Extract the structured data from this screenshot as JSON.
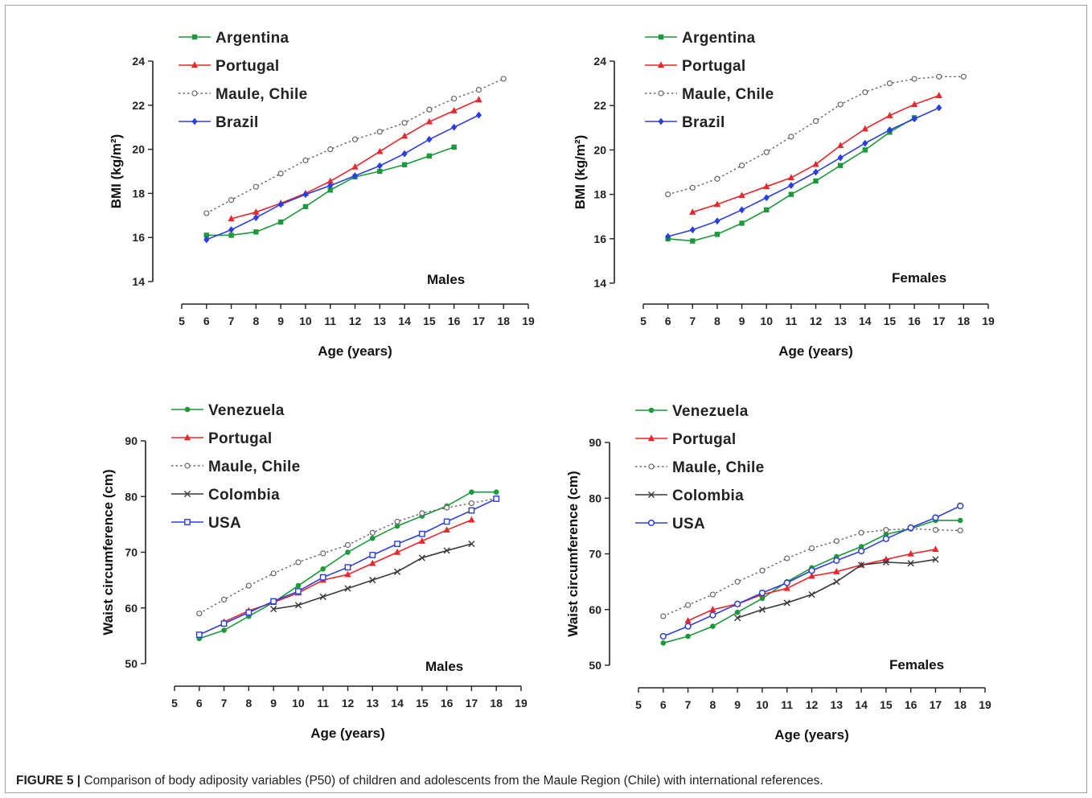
{
  "caption": {
    "label": "FIGURE 5 |",
    "text": " Comparison of body adiposity variables (P50) of children and adolescents from the Maule Region (Chile) with international references."
  },
  "colors": {
    "Argentina": "#1a9a3a",
    "Venezuela": "#1a9a3a",
    "Portugal": "#e8282c",
    "Maule, Chile": "#666666",
    "Brazil": "#2b3ee0",
    "USA": "#2b3ee0",
    "Colombia": "#3a3a3a"
  },
  "chart_data": [
    {
      "type": "line",
      "panel_label": "Males",
      "xlabel": "Age (years)",
      "ylabel": "BMI (kg/m²)",
      "xlim": [
        5,
        19
      ],
      "ylim": [
        14,
        24
      ],
      "xticks": [
        5,
        6,
        7,
        8,
        9,
        10,
        11,
        12,
        13,
        14,
        15,
        16,
        17,
        18,
        19
      ],
      "yticks": [
        14,
        16,
        18,
        20,
        22,
        24
      ],
      "legend": [
        "Argentina",
        "Portugal",
        "Maule, Chile",
        "Brazil"
      ],
      "series": [
        {
          "name": "Argentina",
          "marker": "square",
          "dashed": false,
          "x": [
            6,
            7,
            8,
            9,
            10,
            11,
            12,
            13,
            14,
            15,
            16
          ],
          "y": [
            16.1,
            16.1,
            16.25,
            16.7,
            17.4,
            18.15,
            18.75,
            19.0,
            19.3,
            19.7,
            20.1
          ]
        },
        {
          "name": "Portugal",
          "marker": "triangle",
          "dashed": false,
          "x": [
            7,
            8,
            9,
            10,
            11,
            12,
            13,
            14,
            15,
            16,
            17
          ],
          "y": [
            16.85,
            17.15,
            17.55,
            18.0,
            18.55,
            19.2,
            19.9,
            20.6,
            21.25,
            21.75,
            22.25
          ]
        },
        {
          "name": "Maule, Chile",
          "marker": "circle-open",
          "dashed": true,
          "x": [
            6,
            7,
            8,
            9,
            10,
            11,
            12,
            13,
            14,
            15,
            16,
            17,
            18
          ],
          "y": [
            17.1,
            17.7,
            18.3,
            18.9,
            19.5,
            20.0,
            20.45,
            20.8,
            21.2,
            21.8,
            22.3,
            22.7,
            23.2
          ]
        },
        {
          "name": "Brazil",
          "marker": "diamond",
          "dashed": false,
          "x": [
            6,
            7,
            8,
            9,
            10,
            11,
            12,
            13,
            14,
            15,
            16,
            17
          ],
          "y": [
            15.9,
            16.35,
            16.9,
            17.5,
            17.95,
            18.35,
            18.8,
            19.25,
            19.8,
            20.45,
            21.0,
            21.55
          ]
        }
      ]
    },
    {
      "type": "line",
      "panel_label": "Females",
      "xlabel": "Age (years)",
      "ylabel": "BMI (kg/m²)",
      "xlim": [
        5,
        19
      ],
      "ylim": [
        14,
        24
      ],
      "xticks": [
        5,
        6,
        7,
        8,
        9,
        10,
        11,
        12,
        13,
        14,
        15,
        16,
        17,
        18,
        19
      ],
      "yticks": [
        14,
        16,
        18,
        20,
        22,
        24
      ],
      "legend": [
        "Argentina",
        "Portugal",
        "Maule, Chile",
        "Brazil"
      ],
      "series": [
        {
          "name": "Argentina",
          "marker": "square",
          "dashed": false,
          "x": [
            6,
            7,
            8,
            9,
            10,
            11,
            12,
            13,
            14,
            15,
            16
          ],
          "y": [
            16.0,
            15.9,
            16.2,
            16.7,
            17.3,
            18.0,
            18.6,
            19.3,
            20.0,
            20.8,
            21.45
          ]
        },
        {
          "name": "Portugal",
          "marker": "triangle",
          "dashed": false,
          "x": [
            7,
            8,
            9,
            10,
            11,
            12,
            13,
            14,
            15,
            16,
            17
          ],
          "y": [
            17.2,
            17.55,
            17.95,
            18.35,
            18.75,
            19.35,
            20.2,
            20.95,
            21.55,
            22.05,
            22.45
          ]
        },
        {
          "name": "Maule, Chile",
          "marker": "circle-open",
          "dashed": true,
          "x": [
            6,
            7,
            8,
            9,
            10,
            11,
            12,
            13,
            14,
            15,
            16,
            17,
            18
          ],
          "y": [
            18.0,
            18.3,
            18.7,
            19.3,
            19.9,
            20.6,
            21.3,
            22.05,
            22.6,
            23.0,
            23.2,
            23.3,
            23.3
          ]
        },
        {
          "name": "Brazil",
          "marker": "diamond",
          "dashed": false,
          "x": [
            6,
            7,
            8,
            9,
            10,
            11,
            12,
            13,
            14,
            15,
            16,
            17
          ],
          "y": [
            16.1,
            16.4,
            16.8,
            17.3,
            17.85,
            18.4,
            19.0,
            19.65,
            20.3,
            20.9,
            21.4,
            21.9
          ]
        }
      ]
    },
    {
      "type": "line",
      "panel_label": "Males",
      "xlabel": "Age (years)",
      "ylabel": "Waist circumference (cm)",
      "xlim": [
        5,
        19
      ],
      "ylim": [
        50,
        90
      ],
      "xticks": [
        5,
        6,
        7,
        8,
        9,
        10,
        11,
        12,
        13,
        14,
        15,
        16,
        17,
        18,
        19
      ],
      "yticks": [
        50,
        60,
        70,
        80,
        90
      ],
      "legend": [
        "Venezuela",
        "Portugal",
        "Maule, Chile",
        "Colombia",
        "USA"
      ],
      "series": [
        {
          "name": "Venezuela",
          "marker": "circle-filled",
          "dashed": false,
          "x": [
            6,
            7,
            8,
            9,
            10,
            11,
            12,
            13,
            14,
            15,
            16,
            17,
            18
          ],
          "y": [
            54.5,
            56.0,
            58.5,
            61.0,
            64.0,
            67.0,
            70.0,
            72.5,
            74.7,
            76.5,
            78.3,
            80.8,
            80.8
          ]
        },
        {
          "name": "Portugal",
          "marker": "triangle",
          "dashed": false,
          "x": [
            7,
            8,
            9,
            10,
            11,
            12,
            13,
            14,
            15,
            16,
            17
          ],
          "y": [
            57.5,
            59.5,
            61.0,
            62.7,
            65.0,
            66.0,
            68.0,
            70.0,
            72.0,
            74.0,
            75.8
          ]
        },
        {
          "name": "Maule, Chile",
          "marker": "circle-open",
          "dashed": true,
          "x": [
            6,
            7,
            8,
            9,
            10,
            11,
            12,
            13,
            14,
            15,
            16,
            17,
            18
          ],
          "y": [
            59.0,
            61.5,
            64.0,
            66.2,
            68.2,
            69.8,
            71.3,
            73.5,
            75.5,
            77.0,
            78.0,
            78.8,
            79.7
          ]
        },
        {
          "name": "Colombia",
          "marker": "x",
          "dashed": false,
          "x": [
            9,
            10,
            11,
            12,
            13,
            14,
            15,
            16,
            17
          ],
          "y": [
            59.8,
            60.5,
            62.0,
            63.5,
            65.0,
            66.5,
            69.0,
            70.3,
            71.5
          ]
        },
        {
          "name": "USA",
          "marker": "square-open",
          "dashed": false,
          "x": [
            6,
            7,
            8,
            9,
            10,
            11,
            12,
            13,
            14,
            15,
            16,
            17,
            18
          ],
          "y": [
            55.2,
            57.2,
            59.2,
            61.2,
            63.0,
            65.5,
            67.3,
            69.5,
            71.5,
            73.3,
            75.5,
            77.5,
            79.6
          ]
        }
      ]
    },
    {
      "type": "line",
      "panel_label": "Females",
      "xlabel": "Age (years)",
      "ylabel": "Waist circumference (cm)",
      "xlim": [
        5,
        19
      ],
      "ylim": [
        50,
        90
      ],
      "xticks": [
        5,
        6,
        7,
        8,
        9,
        10,
        11,
        12,
        13,
        14,
        15,
        16,
        17,
        18,
        19
      ],
      "yticks": [
        50,
        60,
        70,
        80,
        90
      ],
      "legend": [
        "Venezuela",
        "Portugal",
        "Maule, Chile",
        "Colombia",
        "USA"
      ],
      "series": [
        {
          "name": "Venezuela",
          "marker": "circle-filled",
          "dashed": false,
          "x": [
            6,
            7,
            8,
            9,
            10,
            11,
            12,
            13,
            14,
            15,
            16,
            17,
            18
          ],
          "y": [
            54.0,
            55.2,
            57.0,
            59.5,
            62.0,
            65.0,
            67.5,
            69.5,
            71.3,
            73.5,
            74.5,
            76.0,
            76.0
          ]
        },
        {
          "name": "Portugal",
          "marker": "triangle",
          "dashed": false,
          "x": [
            7,
            8,
            9,
            10,
            11,
            12,
            13,
            14,
            15,
            16,
            17
          ],
          "y": [
            58.0,
            60.0,
            61.0,
            62.7,
            63.8,
            66.0,
            66.8,
            68.0,
            69.0,
            70.0,
            70.8
          ]
        },
        {
          "name": "Maule, Chile",
          "marker": "circle-open",
          "dashed": true,
          "x": [
            6,
            7,
            8,
            9,
            10,
            11,
            12,
            13,
            14,
            15,
            16,
            17,
            18
          ],
          "y": [
            58.8,
            60.8,
            62.7,
            65.0,
            67.0,
            69.2,
            71.0,
            72.3,
            73.8,
            74.3,
            74.5,
            74.3,
            74.2
          ]
        },
        {
          "name": "Colombia",
          "marker": "x",
          "dashed": false,
          "x": [
            9,
            10,
            11,
            12,
            13,
            14,
            15,
            16,
            17
          ],
          "y": [
            58.5,
            60.0,
            61.2,
            62.7,
            65.0,
            68.0,
            68.5,
            68.3,
            69.0
          ]
        },
        {
          "name": "USA",
          "marker": "circle-open-blue",
          "dashed": false,
          "x": [
            6,
            7,
            8,
            9,
            10,
            11,
            12,
            13,
            14,
            15,
            16,
            17,
            18
          ],
          "y": [
            55.2,
            57.0,
            59.0,
            61.0,
            63.0,
            64.8,
            67.0,
            68.8,
            70.5,
            72.7,
            74.7,
            76.5,
            78.6
          ]
        }
      ]
    }
  ]
}
